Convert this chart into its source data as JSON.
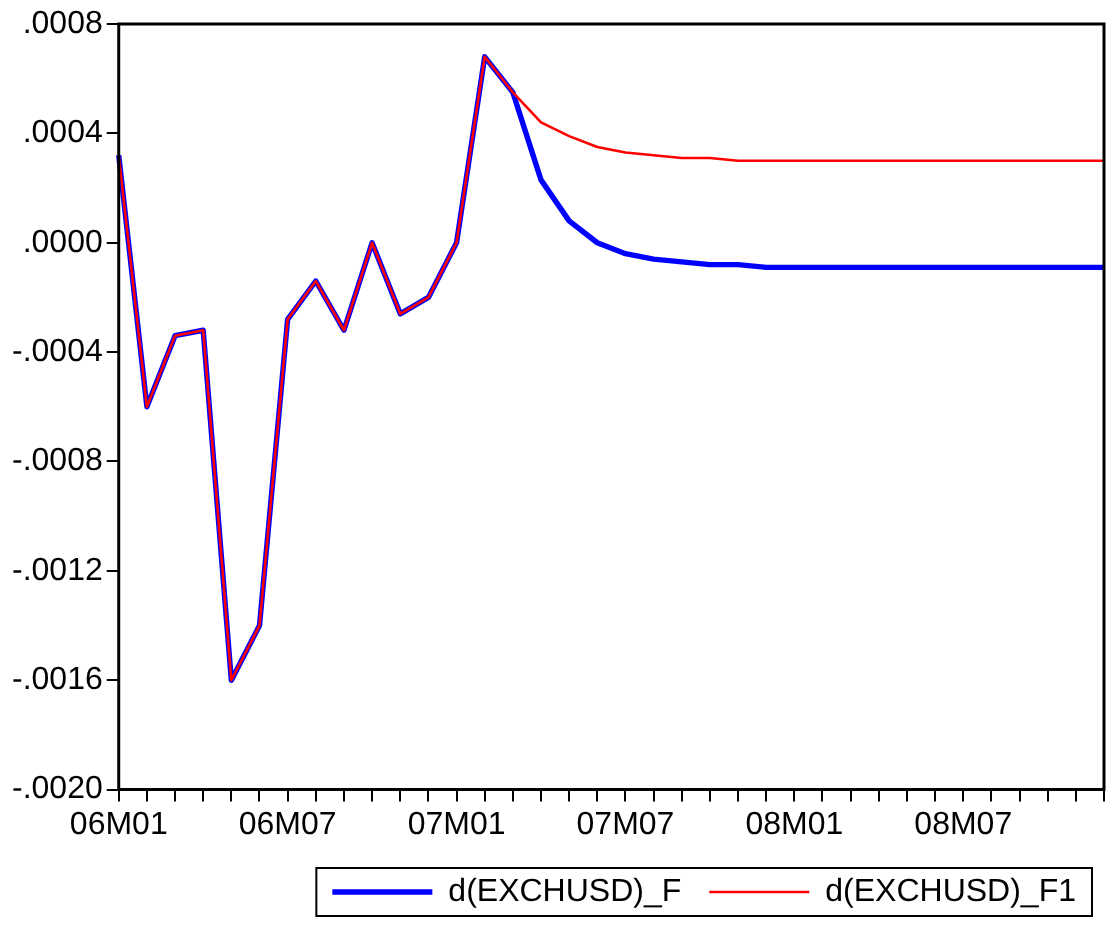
{
  "chart_data": {
    "type": "line",
    "categories": [
      "06M01",
      null,
      null,
      null,
      null,
      null,
      "06M07",
      null,
      null,
      null,
      null,
      null,
      "07M01",
      null,
      null,
      null,
      null,
      null,
      "07M07",
      null,
      null,
      null,
      null,
      null,
      "08M01",
      null,
      null,
      null,
      null,
      null,
      "08M07",
      null,
      null,
      null,
      null,
      null
    ],
    "series": [
      {
        "name": "d(EXCHUSD)_F",
        "color": "#0000ff",
        "values": [
          0.00032,
          -0.0006,
          -0.00034,
          -0.00032,
          -0.0016,
          -0.0014,
          -0.00028,
          -0.00014,
          -0.00032,
          0.0,
          -0.00026,
          -0.0002,
          0.0,
          0.00068,
          0.00055,
          0.00023,
          8e-05,
          0.0,
          -4e-05,
          -6e-05,
          -7e-05,
          -8e-05,
          -8e-05,
          -9e-05,
          -9e-05,
          -9e-05,
          -9e-05,
          -9e-05,
          -9e-05,
          -9e-05,
          -9e-05,
          -9e-05,
          -9e-05,
          -9e-05,
          -9e-05,
          -9e-05
        ]
      },
      {
        "name": "d(EXCHUSD)_F1",
        "color": "#ff0000",
        "values": [
          0.00032,
          -0.0006,
          -0.00034,
          -0.00032,
          -0.0016,
          -0.0014,
          -0.00028,
          -0.00014,
          -0.00032,
          0.0,
          -0.00026,
          -0.0002,
          0.0,
          0.00068,
          0.00055,
          0.00044,
          0.00039,
          0.00035,
          0.00033,
          0.00032,
          0.00031,
          0.00031,
          0.0003,
          0.0003,
          0.0003,
          0.0003,
          0.0003,
          0.0003,
          0.0003,
          0.0003,
          0.0003,
          0.0003,
          0.0003,
          0.0003,
          0.0003,
          0.0003
        ]
      }
    ],
    "ylim": [
      -0.002,
      0.0008
    ],
    "yticks": [
      {
        "value": -0.002,
        "label": "-.0020"
      },
      {
        "value": -0.0016,
        "label": "-.0016"
      },
      {
        "value": -0.0012,
        "label": "-.0012"
      },
      {
        "value": -0.0008,
        "label": "-.0008"
      },
      {
        "value": -0.0004,
        "label": "-.0004"
      },
      {
        "value": 0,
        "label": ".0000"
      },
      {
        "value": 0.0004,
        "label": ".0004"
      },
      {
        "value": 0.0008,
        "label": ".0008"
      }
    ],
    "grid": false,
    "legend": "bottom",
    "marker": "none",
    "line_style": "solid"
  }
}
